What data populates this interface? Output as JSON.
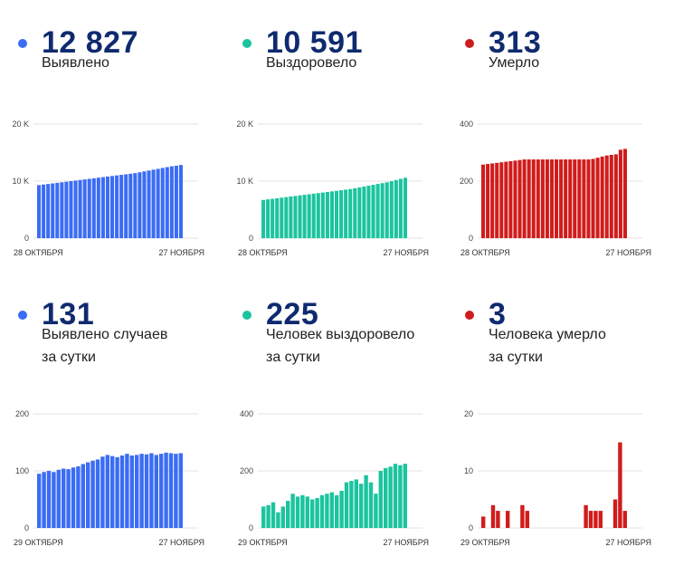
{
  "panels": [
    {
      "value": "12 827",
      "label": [
        "Выявлено"
      ],
      "color": "#3b6cf4",
      "chart_data": {
        "type": "bar",
        "ylim": [
          0,
          20000
        ],
        "yticks": [
          {
            "v": 0,
            "t": "0"
          },
          {
            "v": 10000,
            "t": "10 K"
          },
          {
            "v": 20000,
            "t": "20 K"
          }
        ],
        "xstart": "28 ОКТЯБРЯ",
        "xend": "27 НОЯБРЯ",
        "values": [
          9300,
          9400,
          9500,
          9600,
          9700,
          9800,
          9900,
          10000,
          10100,
          10200,
          10300,
          10400,
          10500,
          10600,
          10700,
          10800,
          10900,
          11000,
          11100,
          11200,
          11300,
          11400,
          11550,
          11700,
          11850,
          12000,
          12150,
          12300,
          12450,
          12600,
          12700,
          12827
        ]
      }
    },
    {
      "value": "10 591",
      "label": [
        "Выздоровело"
      ],
      "color": "#1bc49e",
      "chart_data": {
        "type": "bar",
        "ylim": [
          0,
          20000
        ],
        "yticks": [
          {
            "v": 0,
            "t": "0"
          },
          {
            "v": 10000,
            "t": "10 K"
          },
          {
            "v": 20000,
            "t": "20 K"
          }
        ],
        "xstart": "28 ОКТЯБРЯ",
        "xend": "27 НОЯБРЯ",
        "values": [
          6700,
          6800,
          6900,
          7000,
          7100,
          7200,
          7300,
          7400,
          7500,
          7600,
          7700,
          7800,
          7900,
          8000,
          8100,
          8200,
          8300,
          8400,
          8500,
          8600,
          8750,
          8900,
          9050,
          9200,
          9350,
          9500,
          9650,
          9800,
          10000,
          10200,
          10400,
          10591
        ]
      }
    },
    {
      "value": "313",
      "label": [
        "Умерло"
      ],
      "color": "#d01c1c",
      "chart_data": {
        "type": "bar",
        "ylim": [
          0,
          400
        ],
        "yticks": [
          {
            "v": 0,
            "t": "0"
          },
          {
            "v": 200,
            "t": "200"
          },
          {
            "v": 400,
            "t": "400"
          }
        ],
        "xstart": "28 ОКТЯБРЯ",
        "xend": "27 НОЯБРЯ",
        "values": [
          258,
          260,
          262,
          264,
          266,
          268,
          270,
          272,
          274,
          276,
          276,
          276,
          276,
          276,
          276,
          276,
          276,
          276,
          276,
          276,
          276,
          276,
          276,
          276,
          278,
          282,
          286,
          290,
          292,
          294,
          310,
          313
        ]
      }
    },
    {
      "value": "131",
      "label": [
        "Выявлено случаев",
        "за сутки"
      ],
      "color": "#3b6cf4",
      "chart_data": {
        "type": "bar",
        "ylim": [
          0,
          200
        ],
        "yticks": [
          {
            "v": 0,
            "t": "0"
          },
          {
            "v": 100,
            "t": "100"
          },
          {
            "v": 200,
            "t": "200"
          }
        ],
        "xstart": "29 ОКТЯБРЯ",
        "xend": "27 НОЯБРЯ",
        "values": [
          95,
          98,
          100,
          98,
          102,
          104,
          103,
          106,
          108,
          112,
          115,
          118,
          120,
          125,
          128,
          126,
          124,
          127,
          130,
          127,
          128,
          130,
          129,
          131,
          128,
          130,
          132,
          131,
          130,
          131
        ]
      }
    },
    {
      "value": "225",
      "label": [
        "Человек выздоровело",
        "за сутки"
      ],
      "color": "#1bc49e",
      "chart_data": {
        "type": "bar",
        "ylim": [
          0,
          400
        ],
        "yticks": [
          {
            "v": 0,
            "t": "0"
          },
          {
            "v": 200,
            "t": "200"
          },
          {
            "v": 400,
            "t": "400"
          }
        ],
        "xstart": "29 ОКТЯБРЯ",
        "xend": "27 НОЯБРЯ",
        "values": [
          75,
          80,
          90,
          55,
          75,
          95,
          120,
          110,
          115,
          110,
          100,
          105,
          115,
          120,
          125,
          115,
          130,
          160,
          165,
          170,
          155,
          185,
          160,
          120,
          200,
          210,
          215,
          225,
          220,
          225
        ]
      }
    },
    {
      "value": "3",
      "label": [
        "Человека умерло",
        "за сутки"
      ],
      "color": "#d01c1c",
      "chart_data": {
        "type": "bar",
        "ylim": [
          0,
          20
        ],
        "yticks": [
          {
            "v": 0,
            "t": "0"
          },
          {
            "v": 10,
            "t": "10"
          },
          {
            "v": 20,
            "t": "20"
          }
        ],
        "xstart": "29 ОКТЯБРЯ",
        "xend": "27 НОЯБРЯ",
        "values": [
          2,
          0,
          4,
          3,
          0,
          3,
          0,
          0,
          4,
          3,
          0,
          0,
          0,
          0,
          0,
          0,
          0,
          0,
          0,
          0,
          0,
          4,
          3,
          3,
          3,
          0,
          0,
          5,
          15,
          3
        ]
      }
    }
  ]
}
